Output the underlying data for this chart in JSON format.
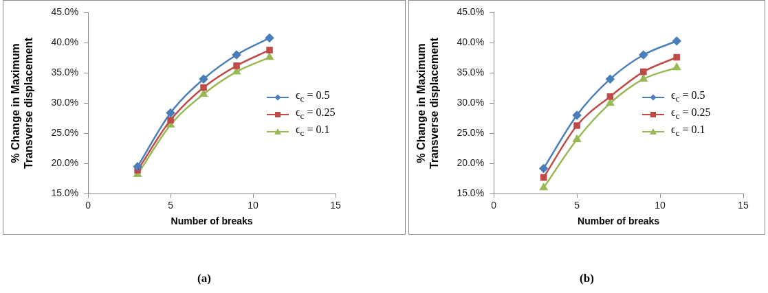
{
  "chart_data": [
    {
      "type": "line",
      "xlabel": "Number of breaks",
      "ylabel": "% Change in Maximum\nTransverse displacement",
      "annotations": [
        "(a)"
      ],
      "x": [
        3,
        5,
        7,
        9,
        11
      ],
      "xlim": [
        0,
        15
      ],
      "xticks": [
        0,
        5,
        10,
        15
      ],
      "ylim": [
        15,
        45
      ],
      "yticks": [
        {
          "value": 15,
          "label": "15.0%"
        },
        {
          "value": 20,
          "label": "20.0%"
        },
        {
          "value": 25,
          "label": "25.0%"
        },
        {
          "value": 30,
          "label": "30.0%"
        },
        {
          "value": 35,
          "label": "35.0%"
        },
        {
          "value": 40,
          "label": "40.0%"
        },
        {
          "value": 45,
          "label": "45.0%"
        }
      ],
      "grid": false,
      "legend": "right",
      "series": [
        {
          "name": "ϵ$_{c}$ = 0.5",
          "color": "#4a7ebb",
          "marker": "diamond",
          "values": [
            19.5,
            28.4,
            34.0,
            38.0,
            40.8
          ]
        },
        {
          "name": "ϵ$_{c}$ = 0.25",
          "color": "#be4b48",
          "marker": "square",
          "values": [
            18.9,
            27.2,
            32.6,
            36.2,
            38.8
          ]
        },
        {
          "name": "ϵ$_{c}$ = 0.1",
          "color": "#98b954",
          "marker": "triangle",
          "values": [
            18.2,
            26.4,
            31.5,
            35.2,
            37.6
          ]
        }
      ]
    },
    {
      "type": "line",
      "xlabel": "Number of breaks",
      "ylabel": "% Change in Maximum\nTransverse displacement",
      "annotations": [
        "(b)"
      ],
      "x": [
        3,
        5,
        7,
        9,
        11
      ],
      "xlim": [
        0,
        15
      ],
      "xticks": [
        0,
        5,
        10,
        15
      ],
      "ylim": [
        15,
        45
      ],
      "yticks": [
        {
          "value": 15,
          "label": "15.0%"
        },
        {
          "value": 20,
          "label": "20.0%"
        },
        {
          "value": 25,
          "label": "25.0%"
        },
        {
          "value": 30,
          "label": "30.0%"
        },
        {
          "value": 35,
          "label": "35.0%"
        },
        {
          "value": 40,
          "label": "40.0%"
        },
        {
          "value": 45,
          "label": "45.0%"
        }
      ],
      "grid": false,
      "legend": "right",
      "series": [
        {
          "name": "ϵ$_{c}$ = 0.5",
          "color": "#4a7ebb",
          "marker": "diamond",
          "values": [
            19.2,
            28.0,
            34.0,
            38.0,
            40.3
          ]
        },
        {
          "name": "ϵ$_{c}$ = 0.25",
          "color": "#be4b48",
          "marker": "square",
          "values": [
            17.7,
            26.3,
            31.1,
            35.2,
            37.6
          ]
        },
        {
          "name": "ϵ$_{c}$ = 0.1",
          "color": "#98b954",
          "marker": "triangle",
          "values": [
            16.0,
            24.0,
            30.0,
            34.0,
            35.9
          ]
        }
      ]
    }
  ]
}
